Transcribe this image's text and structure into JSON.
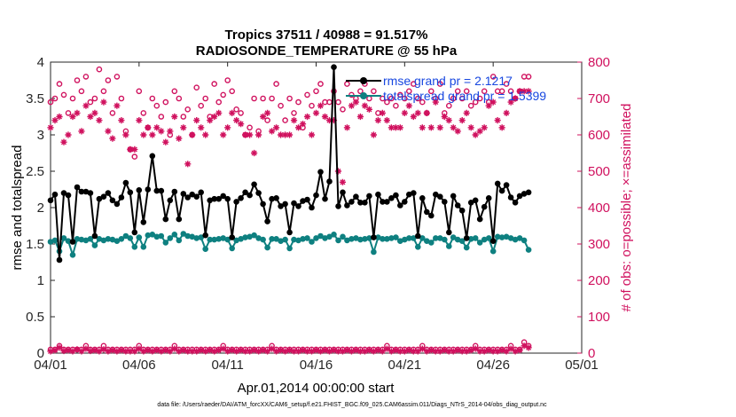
{
  "title_line1": "Tropics 37511 / 40988 = 91.517%",
  "title_line2": "RADIOSONDE_TEMPERATURE @ 55 hPa",
  "xlabel": "Apr.01,2014 00:00:00 start",
  "ylabel_left": "rmse and totalspread",
  "ylabel_right": "# of obs: o=possible; ×=assimilated",
  "footnote": "data file: /Users/raeder/DAI/ATM_forcXX/CAM6_setup/f.e21.FHIST_BGC.f09_025.CAM6assim.011/Diags_NTrS_2014-04/obs_diag_output.nc",
  "colors": {
    "rmse": "#000000",
    "spread": "#0e8080",
    "obs": "#d0115e",
    "legend_text": "#1747e0",
    "axis": "#262626"
  },
  "chart_data": {
    "type": "line",
    "x_tick_labels": [
      "04/01",
      "04/06",
      "04/11",
      "04/16",
      "04/21",
      "04/26",
      "05/01"
    ],
    "x_tick_days": [
      0,
      5,
      10,
      15,
      20,
      25,
      30
    ],
    "xlim": [
      0,
      30
    ],
    "ylim_left": [
      0,
      4
    ],
    "yticks_left": [
      "0",
      "0.5",
      "1",
      "1.5",
      "2",
      "2.5",
      "3",
      "3.5",
      "4"
    ],
    "ylim_right": [
      0,
      800
    ],
    "yticks_right": [
      "0",
      "100",
      "200",
      "300",
      "400",
      "500",
      "600",
      "700",
      "800"
    ],
    "legend": [
      "rmse grand pr = 2.1217",
      "totalspread grand pr = 1.5399"
    ],
    "day_start": 0,
    "day_step": 0.25,
    "series": [
      {
        "name": "rmse",
        "axis": "left",
        "color": "#000000",
        "marker": "filled-circle",
        "values": [
          2.1,
          2.18,
          1.28,
          2.2,
          2.17,
          1.53,
          2.28,
          2.22,
          2.22,
          2.2,
          1.61,
          2.12,
          2.15,
          2.2,
          2.1,
          2.05,
          2.14,
          2.34,
          2.21,
          1.66,
          2.24,
          1.8,
          2.25,
          2.71,
          2.23,
          2.23,
          1.84,
          2.1,
          2.22,
          1.84,
          2.19,
          2.14,
          2.18,
          2.15,
          2.21,
          1.62,
          2.1,
          2.12,
          2.12,
          2.16,
          2.12,
          1.59,
          2.08,
          2.13,
          2.21,
          2.17,
          2.32,
          2.2,
          2.05,
          1.81,
          2.12,
          2.13,
          2.02,
          2.05,
          1.66,
          2.06,
          2.02,
          2.09,
          2.11,
          2.0,
          2.17,
          2.49,
          2.12,
          2.36,
          3.93,
          2.02,
          2.21,
          2.03,
          2.08,
          2.15,
          2.07,
          2.07,
          2.16,
          1.59,
          2.18,
          2.08,
          2.08,
          2.13,
          2.17,
          2.03,
          2.08,
          2.18,
          2.2,
          1.61,
          2.13,
          1.94,
          1.89,
          2.18,
          2.15,
          2.08,
          1.66,
          2.16,
          2.03,
          1.96,
          1.58,
          2.07,
          2.1,
          1.84,
          2.01,
          2.13,
          1.54,
          2.33,
          2.23,
          2.31,
          2.14,
          2.07,
          2.16,
          2.19,
          2.21
        ]
      },
      {
        "name": "totalspread",
        "axis": "left",
        "color": "#0e8080",
        "marker": "filled-circle",
        "values": [
          1.53,
          1.55,
          1.4,
          1.58,
          1.54,
          1.35,
          1.57,
          1.56,
          1.55,
          1.57,
          1.48,
          1.57,
          1.55,
          1.57,
          1.56,
          1.54,
          1.57,
          1.61,
          1.58,
          1.46,
          1.59,
          1.46,
          1.62,
          1.63,
          1.6,
          1.61,
          1.52,
          1.58,
          1.63,
          1.55,
          1.64,
          1.61,
          1.6,
          1.58,
          1.59,
          1.43,
          1.56,
          1.56,
          1.57,
          1.58,
          1.56,
          1.44,
          1.55,
          1.57,
          1.59,
          1.6,
          1.62,
          1.58,
          1.56,
          1.45,
          1.57,
          1.57,
          1.54,
          1.56,
          1.44,
          1.56,
          1.55,
          1.57,
          1.58,
          1.53,
          1.58,
          1.61,
          1.58,
          1.6,
          1.63,
          1.55,
          1.6,
          1.55,
          1.57,
          1.58,
          1.56,
          1.57,
          1.58,
          1.39,
          1.59,
          1.57,
          1.57,
          1.58,
          1.59,
          1.54,
          1.56,
          1.58,
          1.58,
          1.46,
          1.58,
          1.54,
          1.52,
          1.58,
          1.58,
          1.56,
          1.47,
          1.59,
          1.56,
          1.54,
          1.45,
          1.57,
          1.58,
          1.52,
          1.56,
          1.58,
          1.4,
          1.6,
          1.59,
          1.6,
          1.58,
          1.56,
          1.58,
          1.55,
          1.42
        ]
      },
      {
        "name": "obs_possible",
        "axis": "right",
        "color": "#d0115e",
        "marker": "open-circle",
        "values": [
          690,
          700,
          740,
          710,
          660,
          700,
          750,
          720,
          760,
          690,
          700,
          780,
          720,
          750,
          660,
          760,
          700,
          610,
          560,
          540,
          720,
          660,
          620,
          700,
          680,
          650,
          690,
          600,
          720,
          700,
          650,
          670,
          600,
          730,
          680,
          700,
          650,
          740,
          690,
          710,
          750,
          720,
          670,
          660,
          600,
          620,
          700,
          610,
          700,
          640,
          700,
          740,
          680,
          640,
          700,
          660,
          690,
          620,
          710,
          680,
          720,
          740,
          690,
          690,
          720,
          690,
          670,
          740,
          710,
          700,
          720,
          740,
          700,
          720,
          660,
          700,
          690,
          700,
          680,
          710,
          700,
          720,
          740,
          700,
          690,
          660,
          720,
          700,
          740,
          660,
          680,
          700,
          720,
          700,
          720,
          680,
          690,
          700,
          720,
          690,
          760,
          720,
          720,
          740,
          720,
          700,
          720,
          760,
          760
        ]
      },
      {
        "name": "obs_assimilated",
        "axis": "right",
        "color": "#d0115e",
        "marker": "asterisk",
        "values": [
          620,
          640,
          650,
          580,
          600,
          650,
          660,
          610,
          680,
          650,
          660,
          640,
          690,
          610,
          590,
          680,
          640,
          600,
          560,
          560,
          640,
          600,
          620,
          600,
          620,
          610,
          580,
          610,
          650,
          590,
          620,
          520,
          600,
          640,
          620,
          600,
          640,
          650,
          660,
          600,
          620,
          660,
          640,
          630,
          600,
          600,
          550,
          600,
          650,
          660,
          610,
          620,
          600,
          600,
          600,
          640,
          620,
          630,
          650,
          600,
          660,
          680,
          650,
          640,
          640,
          500,
          470,
          620,
          680,
          690,
          650,
          680,
          670,
          600,
          640,
          660,
          640,
          620,
          620,
          620,
          660,
          680,
          650,
          660,
          620,
          660,
          620,
          690,
          620,
          650,
          640,
          620,
          610,
          640,
          660,
          620,
          600,
          610,
          620,
          680,
          690,
          640,
          620,
          660,
          690,
          700,
          720,
          720,
          720
        ]
      },
      {
        "name": "obs_possible_low",
        "axis": "right",
        "color": "#d0115e",
        "marker": "open-circle",
        "values": [
          10,
          10,
          20,
          10,
          10,
          10,
          10,
          10,
          20,
          10,
          10,
          10,
          20,
          10,
          10,
          10,
          10,
          10,
          10,
          10,
          20,
          10,
          10,
          10,
          10,
          10,
          10,
          10,
          20,
          10,
          10,
          10,
          10,
          10,
          10,
          10,
          10,
          10,
          10,
          20,
          10,
          10,
          10,
          10,
          10,
          10,
          10,
          10,
          10,
          10,
          20,
          10,
          10,
          10,
          10,
          10,
          10,
          10,
          10,
          10,
          10,
          10,
          10,
          10,
          10,
          10,
          10,
          10,
          10,
          10,
          10,
          10,
          10,
          10,
          10,
          10,
          20,
          10,
          10,
          10,
          10,
          10,
          10,
          10,
          20,
          10,
          10,
          10,
          10,
          10,
          10,
          10,
          10,
          10,
          10,
          10,
          20,
          10,
          10,
          10,
          10,
          10,
          10,
          10,
          20,
          10,
          10,
          30,
          20
        ]
      },
      {
        "name": "obs_assimilated_low",
        "axis": "right",
        "color": "#d0115e",
        "marker": "asterisk",
        "values": [
          5,
          8,
          15,
          6,
          8,
          5,
          10,
          5,
          12,
          6,
          8,
          5,
          10,
          5,
          8,
          5,
          8,
          5,
          5,
          5,
          12,
          5,
          8,
          5,
          8,
          5,
          8,
          5,
          12,
          5,
          8,
          5,
          5,
          5,
          8,
          5,
          8,
          5,
          8,
          12,
          5,
          8,
          5,
          8,
          5,
          5,
          8,
          5,
          8,
          5,
          12,
          5,
          8,
          5,
          8,
          5,
          5,
          8,
          5,
          5,
          8,
          5,
          8,
          5,
          8,
          5,
          5,
          8,
          5,
          8,
          5,
          5,
          8,
          5,
          8,
          5,
          12,
          5,
          8,
          5,
          5,
          8,
          5,
          5,
          12,
          5,
          8,
          5,
          5,
          8,
          5,
          5,
          8,
          5,
          5,
          8,
          12,
          5,
          5,
          8,
          5,
          5,
          8,
          5,
          12,
          5,
          8,
          20,
          15
        ]
      }
    ]
  }
}
